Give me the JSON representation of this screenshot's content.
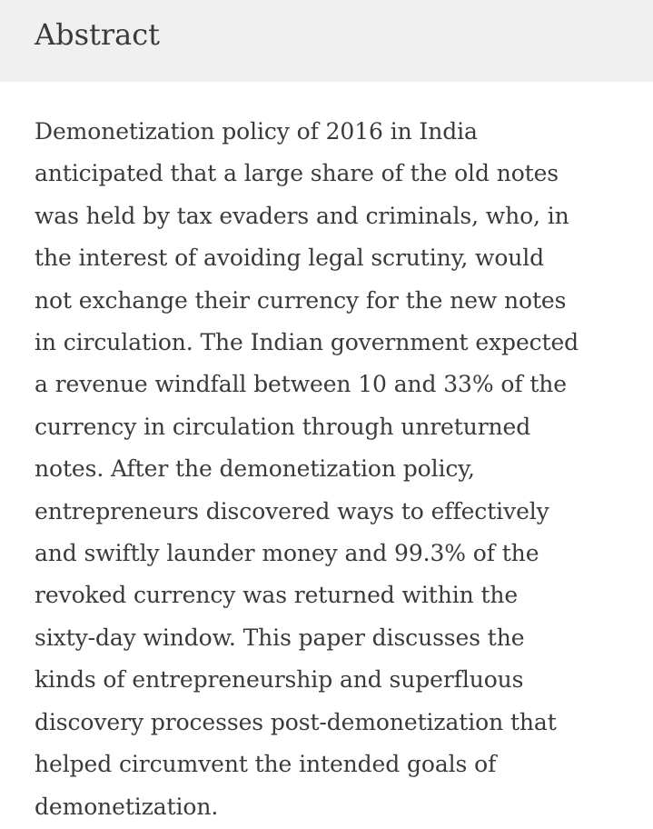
{
  "section": {
    "title": "Abstract",
    "lines": [
      "Demonetization policy of 2016 in India",
      "anticipated that a large share of the old notes",
      "was held by tax evaders and criminals, who, in",
      "the interest of avoiding legal scrutiny, would",
      "not exchange their currency for the new notes",
      "in circulation. The Indian government expected",
      "a revenue windfall between 10 and 33% of the",
      "currency in circulation through unreturned",
      "notes. After the demonetization policy,",
      "entrepreneurs discovered ways to effectively",
      "and swiftly launder money and 99.3% of the",
      "revoked currency was returned within the",
      "sixty-day window. This paper discusses the",
      "kinds of entrepreneurship and superfluous",
      "discovery processes post-demonetization that",
      "helped circumvent the intended goals of",
      "demonetization."
    ]
  }
}
